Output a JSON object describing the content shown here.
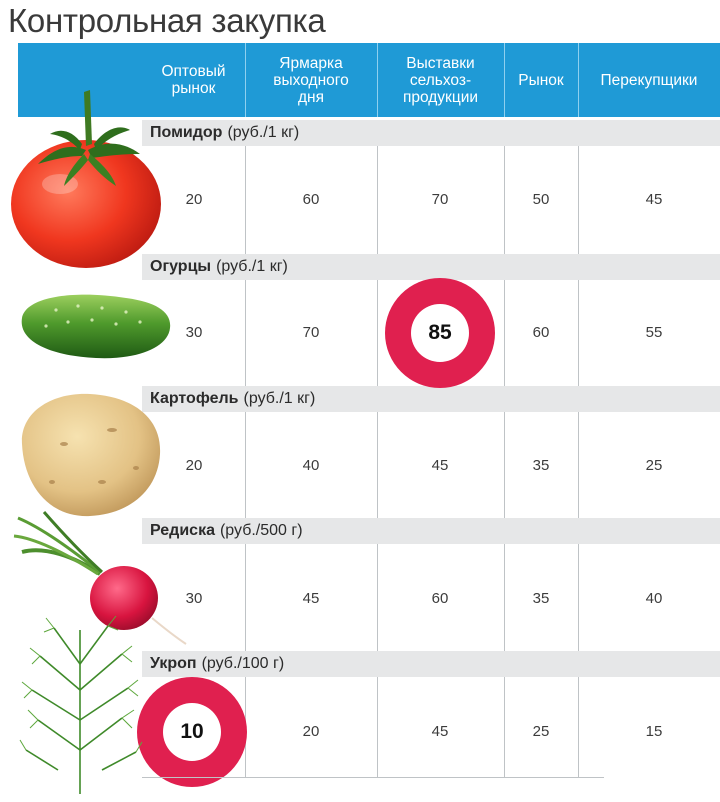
{
  "title": "Контрольная закупка",
  "columns": [
    "Оптовый\nрынок",
    "Ярмарка\nвыходного\nдня",
    "Выставки\nсельхоз-\nпродукции",
    "Рынок",
    "Перекупщики"
  ],
  "rows": [
    {
      "name": "Помидор",
      "unit": "(руб./1 кг)",
      "values": [
        "20",
        "60",
        "70",
        "50",
        "45"
      ]
    },
    {
      "name": "Огурцы",
      "unit": "(руб./1 кг)",
      "values": [
        "30",
        "70",
        "85",
        "60",
        "55"
      ]
    },
    {
      "name": "Картофель",
      "unit": "(руб./1 кг)",
      "values": [
        "20",
        "40",
        "45",
        "35",
        "25"
      ]
    },
    {
      "name": "Редиска",
      "unit": "(руб./500 г)",
      "values": [
        "30",
        "45",
        "60",
        "35",
        "40"
      ]
    },
    {
      "name": "Укроп",
      "unit": "(руб./100 г)",
      "values": [
        "10",
        "20",
        "45",
        "25",
        "15"
      ]
    }
  ],
  "highlights": [
    {
      "row": 1,
      "col": 2,
      "value": "85"
    },
    {
      "row": 4,
      "col": 0,
      "value": "10"
    }
  ],
  "colors": {
    "header": "#1f9ad6",
    "highlight": "#e0204f",
    "category_bg": "#e6e7e8"
  }
}
